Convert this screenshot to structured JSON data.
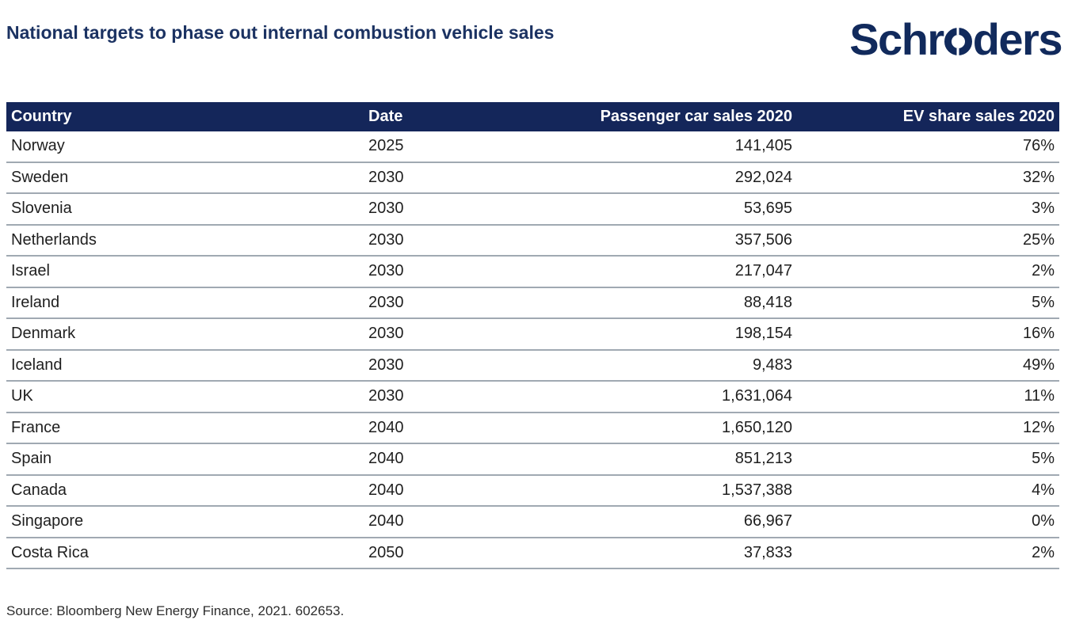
{
  "title": "National targets to phase out internal combustion vehicle sales",
  "logo": {
    "name": "Schroders",
    "pre": "Schr",
    "post": "ders"
  },
  "colors": {
    "brand_navy": "#14265a",
    "title_navy": "#1b3262",
    "row_separator": "#a0a9b2",
    "body_text": "#1f1f1f"
  },
  "table": {
    "columns": [
      {
        "key": "country",
        "label": "Country",
        "align": "left"
      },
      {
        "key": "date",
        "label": "Date",
        "align": "left"
      },
      {
        "key": "sales",
        "label": "Passenger car sales 2020",
        "align": "right"
      },
      {
        "key": "ev",
        "label": "EV share sales 2020",
        "align": "right"
      }
    ],
    "rows": [
      {
        "country": "Norway",
        "date": "2025",
        "sales": "141,405",
        "ev": "76%"
      },
      {
        "country": "Sweden",
        "date": "2030",
        "sales": "292,024",
        "ev": "32%"
      },
      {
        "country": "Slovenia",
        "date": "2030",
        "sales": "53,695",
        "ev": "3%"
      },
      {
        "country": "Netherlands",
        "date": "2030",
        "sales": "357,506",
        "ev": "25%"
      },
      {
        "country": "Israel",
        "date": "2030",
        "sales": "217,047",
        "ev": "2%"
      },
      {
        "country": "Ireland",
        "date": "2030",
        "sales": "88,418",
        "ev": "5%"
      },
      {
        "country": "Denmark",
        "date": "2030",
        "sales": "198,154",
        "ev": "16%"
      },
      {
        "country": "Iceland",
        "date": "2030",
        "sales": "9,483",
        "ev": "49%"
      },
      {
        "country": "UK",
        "date": "2030",
        "sales": "1,631,064",
        "ev": "11%"
      },
      {
        "country": "France",
        "date": "2040",
        "sales": "1,650,120",
        "ev": "12%"
      },
      {
        "country": "Spain",
        "date": "2040",
        "sales": "851,213",
        "ev": "5%"
      },
      {
        "country": "Canada",
        "date": "2040",
        "sales": "1,537,388",
        "ev": "4%"
      },
      {
        "country": "Singapore",
        "date": "2040",
        "sales": "66,967",
        "ev": "0%"
      },
      {
        "country": "Costa Rica",
        "date": "2050",
        "sales": "37,833",
        "ev": "2%"
      }
    ]
  },
  "source": "Source: Bloomberg New Energy Finance, 2021. 602653.",
  "chart_data": {
    "type": "table",
    "title": "National targets to phase out internal combustion vehicle sales",
    "columns": [
      "Country",
      "Date",
      "Passenger car sales 2020",
      "EV share sales 2020"
    ],
    "rows": [
      [
        "Norway",
        2025,
        141405,
        "76%"
      ],
      [
        "Sweden",
        2030,
        292024,
        "32%"
      ],
      [
        "Slovenia",
        2030,
        53695,
        "3%"
      ],
      [
        "Netherlands",
        2030,
        357506,
        "25%"
      ],
      [
        "Israel",
        2030,
        217047,
        "2%"
      ],
      [
        "Ireland",
        2030,
        88418,
        "5%"
      ],
      [
        "Denmark",
        2030,
        198154,
        "16%"
      ],
      [
        "Iceland",
        2030,
        9483,
        "49%"
      ],
      [
        "UK",
        2030,
        1631064,
        "11%"
      ],
      [
        "France",
        2040,
        1650120,
        "12%"
      ],
      [
        "Spain",
        2040,
        851213,
        "5%"
      ],
      [
        "Canada",
        2040,
        1537388,
        "4%"
      ],
      [
        "Singapore",
        2040,
        66967,
        "0%"
      ],
      [
        "Costa Rica",
        2050,
        37833,
        "2%"
      ]
    ],
    "source": "Source: Bloomberg New Energy Finance, 2021. 602653."
  }
}
